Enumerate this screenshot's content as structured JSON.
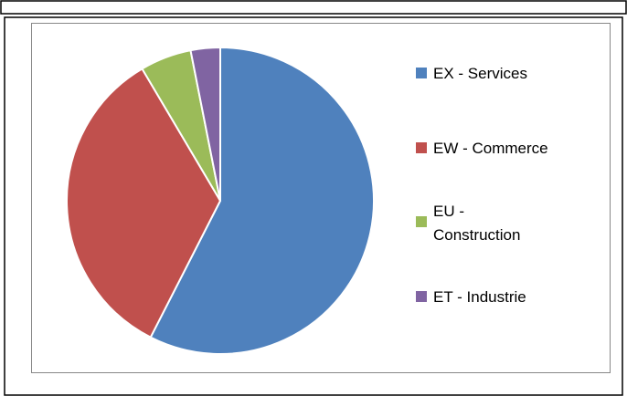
{
  "chart_data": {
    "type": "pie",
    "categories": [
      "EX - Services",
      "EW - Commerce",
      "EU - Construction",
      "ET - Industrie"
    ],
    "values": [
      57.5,
      34,
      5.4,
      3.1
    ],
    "colors": [
      "#4f81bd",
      "#c0504d",
      "#9bbb59",
      "#8064a2"
    ],
    "legend": "right"
  }
}
